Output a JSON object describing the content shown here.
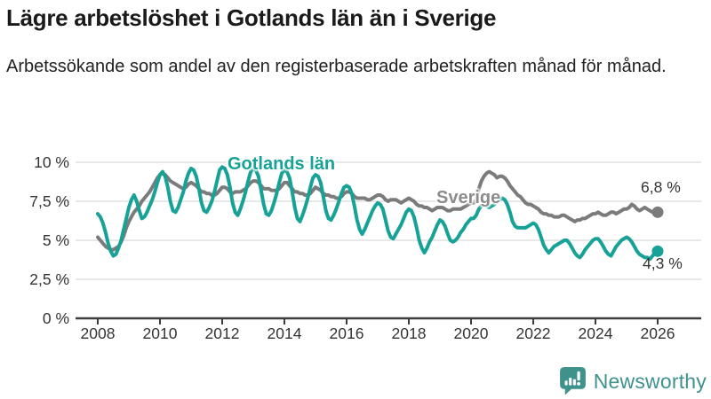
{
  "header": {
    "title": "Lägre arbetslöshet i Gotlands län än i Sverige",
    "subtitle": "Arbetssökande som andel av den registerbaserade arbetskraften månad för månad."
  },
  "chart_data": {
    "type": "line",
    "title": "Lägre arbetslöshet i Gotlands län än i Sverige",
    "subtitle": "Arbetssökande som andel av den registerbaserade arbetskraften månad för månad.",
    "x_unit": "month",
    "x_start_year": 2008,
    "x_end_year": 2026,
    "xlim": [
      2007.3,
      2026.6
    ],
    "ylim": [
      0,
      10.4
    ],
    "grid": true,
    "legend_position": "inline-labels",
    "x_ticks": [
      2008,
      2010,
      2012,
      2014,
      2016,
      2018,
      2020,
      2022,
      2024,
      2026
    ],
    "y_ticks": [
      {
        "value": 10,
        "label": "10 %"
      },
      {
        "value": 7.5,
        "label": "7,5 %"
      },
      {
        "value": 5,
        "label": "5 %"
      },
      {
        "value": 2.5,
        "label": "2,5 %"
      },
      {
        "value": 0,
        "label": "0 %"
      }
    ],
    "colors": {
      "grid": "#E0E0E0",
      "axis": "#3D3D3D",
      "tick_label": "#333333"
    },
    "series": [
      {
        "name": "Gotlands län",
        "slug": "gotland",
        "color": "#17A297",
        "end_label": "4,3 %",
        "end_value": 4.3,
        "values": [
          6.7,
          6.5,
          6.1,
          5.5,
          4.8,
          4.3,
          4.0,
          4.1,
          4.5,
          5.0,
          5.7,
          6.4,
          7.1,
          7.6,
          7.9,
          7.5,
          6.9,
          6.4,
          6.5,
          6.8,
          7.2,
          7.6,
          8.1,
          8.7,
          9.2,
          9.4,
          9.1,
          8.4,
          7.5,
          6.9,
          6.8,
          7.1,
          7.6,
          8.1,
          8.8,
          9.3,
          9.6,
          9.5,
          9.1,
          8.3,
          7.4,
          6.9,
          6.8,
          7.1,
          7.5,
          8.1,
          8.8,
          9.5,
          9.7,
          9.6,
          9.2,
          8.4,
          7.4,
          6.8,
          6.6,
          7.0,
          7.5,
          8.1,
          8.8,
          9.4,
          9.6,
          9.5,
          9.1,
          8.2,
          7.3,
          6.7,
          6.6,
          6.9,
          7.4,
          8.0,
          8.7,
          9.3,
          9.5,
          9.4,
          9.0,
          8.1,
          7.1,
          6.4,
          6.2,
          6.6,
          7.1,
          7.7,
          8.4,
          9.0,
          9.2,
          9.1,
          8.7,
          7.8,
          6.9,
          6.4,
          6.3,
          6.6,
          7.0,
          7.5,
          8.0,
          8.4,
          8.5,
          8.4,
          8.0,
          7.2,
          6.3,
          5.7,
          5.4,
          5.7,
          6.1,
          6.5,
          6.9,
          7.2,
          7.4,
          7.3,
          7.0,
          6.3,
          5.6,
          5.2,
          5.1,
          5.4,
          5.7,
          6.0,
          6.4,
          6.8,
          7.0,
          6.9,
          6.5,
          5.8,
          5.0,
          4.5,
          4.2,
          4.5,
          4.9,
          5.2,
          5.6,
          6.0,
          6.3,
          6.2,
          5.9,
          5.4,
          5.0,
          4.9,
          5.0,
          5.2,
          5.5,
          5.7,
          6.0,
          6.2,
          6.4,
          6.4,
          6.6,
          7.0,
          7.2,
          7.3,
          7.2,
          7.1,
          7.2,
          7.3,
          7.5,
          7.6,
          7.7,
          7.6,
          7.3,
          6.8,
          6.2,
          5.9,
          5.8,
          5.8,
          5.8,
          5.8,
          5.9,
          6.0,
          6.1,
          6.0,
          5.7,
          5.2,
          4.7,
          4.4,
          4.2,
          4.4,
          4.6,
          4.7,
          4.8,
          4.9,
          5.0,
          5.0,
          4.8,
          4.5,
          4.2,
          4.0,
          3.9,
          4.1,
          4.4,
          4.6,
          4.8,
          5.0,
          5.1,
          5.1,
          4.9,
          4.6,
          4.3,
          4.1,
          4.0,
          4.3,
          4.6,
          4.8,
          5.0,
          5.1,
          5.2,
          5.1,
          4.9,
          4.6,
          4.3,
          4.1,
          4.0,
          3.9,
          3.9,
          3.8,
          4.0,
          4.2,
          4.3
        ]
      },
      {
        "name": "Sverige",
        "slug": "sverige",
        "color": "#7B7B7B",
        "end_label": "6,8 %",
        "end_value": 6.8,
        "values": [
          5.2,
          5.0,
          4.8,
          4.6,
          4.5,
          4.4,
          4.4,
          4.5,
          4.6,
          4.9,
          5.3,
          5.8,
          6.2,
          6.5,
          6.8,
          7.0,
          7.2,
          7.5,
          7.7,
          7.9,
          8.1,
          8.4,
          8.7,
          9.0,
          9.2,
          9.3,
          9.2,
          9.0,
          8.8,
          8.7,
          8.6,
          8.5,
          8.4,
          8.3,
          8.4,
          8.6,
          8.7,
          8.6,
          8.5,
          8.3,
          8.1,
          8.1,
          8.0,
          8.0,
          7.9,
          7.9,
          8.0,
          8.2,
          8.4,
          8.4,
          8.3,
          8.1,
          8.0,
          8.1,
          8.1,
          8.1,
          8.2,
          8.3,
          8.5,
          8.7,
          8.8,
          8.8,
          8.7,
          8.5,
          8.3,
          8.3,
          8.3,
          8.2,
          8.2,
          8.2,
          8.3,
          8.5,
          8.7,
          8.7,
          8.5,
          8.3,
          8.1,
          8.1,
          8.0,
          8.0,
          7.9,
          7.9,
          8.0,
          8.2,
          8.4,
          8.3,
          8.2,
          8.0,
          7.9,
          7.9,
          7.8,
          7.8,
          7.7,
          7.7,
          7.8,
          8.0,
          8.1,
          8.1,
          8.0,
          7.8,
          7.7,
          7.7,
          7.7,
          7.7,
          7.6,
          7.6,
          7.7,
          7.8,
          7.9,
          7.9,
          7.8,
          7.6,
          7.5,
          7.6,
          7.6,
          7.6,
          7.5,
          7.4,
          7.5,
          7.6,
          7.7,
          7.6,
          7.5,
          7.3,
          7.2,
          7.2,
          7.1,
          7.1,
          7.0,
          6.9,
          7.0,
          7.1,
          7.1,
          7.1,
          7.0,
          6.9,
          6.9,
          7.0,
          7.0,
          7.0,
          7.0,
          7.1,
          7.2,
          7.3,
          7.4,
          7.4,
          7.6,
          8.3,
          8.8,
          9.1,
          9.3,
          9.4,
          9.3,
          9.2,
          9.0,
          9.1,
          9.1,
          9.0,
          8.8,
          8.5,
          8.3,
          8.1,
          7.9,
          7.8,
          7.6,
          7.4,
          7.3,
          7.3,
          7.2,
          7.1,
          7.0,
          6.8,
          6.7,
          6.7,
          6.6,
          6.6,
          6.5,
          6.5,
          6.5,
          6.6,
          6.6,
          6.5,
          6.4,
          6.3,
          6.2,
          6.3,
          6.3,
          6.4,
          6.4,
          6.5,
          6.6,
          6.7,
          6.7,
          6.8,
          6.7,
          6.6,
          6.6,
          6.7,
          6.8,
          6.8,
          6.7,
          6.8,
          6.9,
          7.0,
          7.0,
          7.1,
          7.3,
          7.2,
          7.0,
          6.9,
          7.0,
          7.1,
          7.0,
          6.9,
          6.8,
          6.8,
          6.8
        ]
      }
    ]
  },
  "footer": {
    "brand": "Newsworthy",
    "brand_color": "#3F928C"
  }
}
